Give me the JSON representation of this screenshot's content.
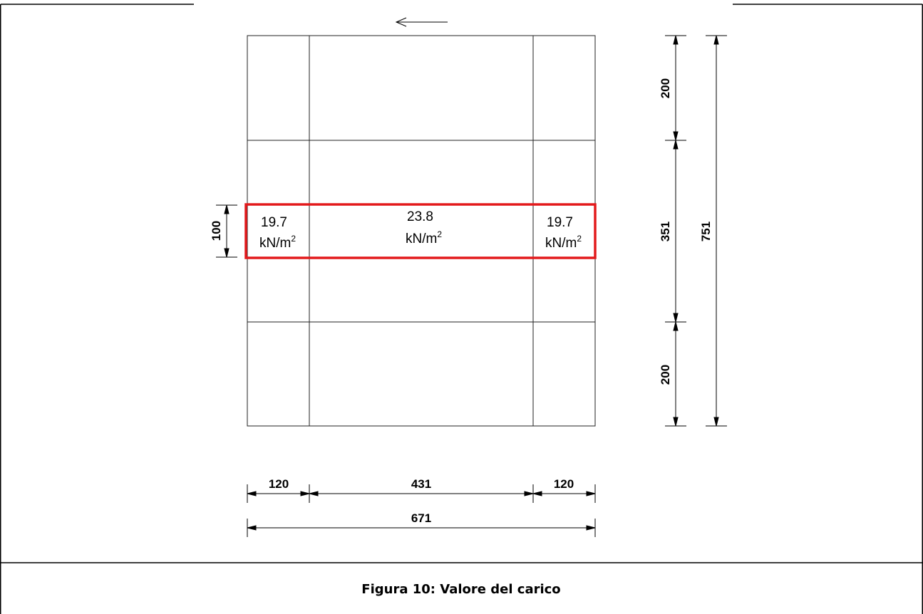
{
  "figure": {
    "caption": "Figura 10: Valore del carico",
    "colors": {
      "highlight": "#e31a1c",
      "lines": "#222222",
      "border": "#000000"
    },
    "icons": [
      "direction-arrow-left-icon"
    ]
  },
  "loads": {
    "left": {
      "value": "19.7",
      "unit_base": "kN/m",
      "unit_exp": "2"
    },
    "center": {
      "value": "23.8",
      "unit_base": "kN/m",
      "unit_exp": "2"
    },
    "right": {
      "value": "19.7",
      "unit_base": "kN/m",
      "unit_exp": "2"
    }
  },
  "dimensions": {
    "bottom_segments": [
      "120",
      "431",
      "120"
    ],
    "bottom_total": "671",
    "right_segments": [
      "200",
      "351",
      "200"
    ],
    "right_total": "751",
    "left_band": "100"
  }
}
